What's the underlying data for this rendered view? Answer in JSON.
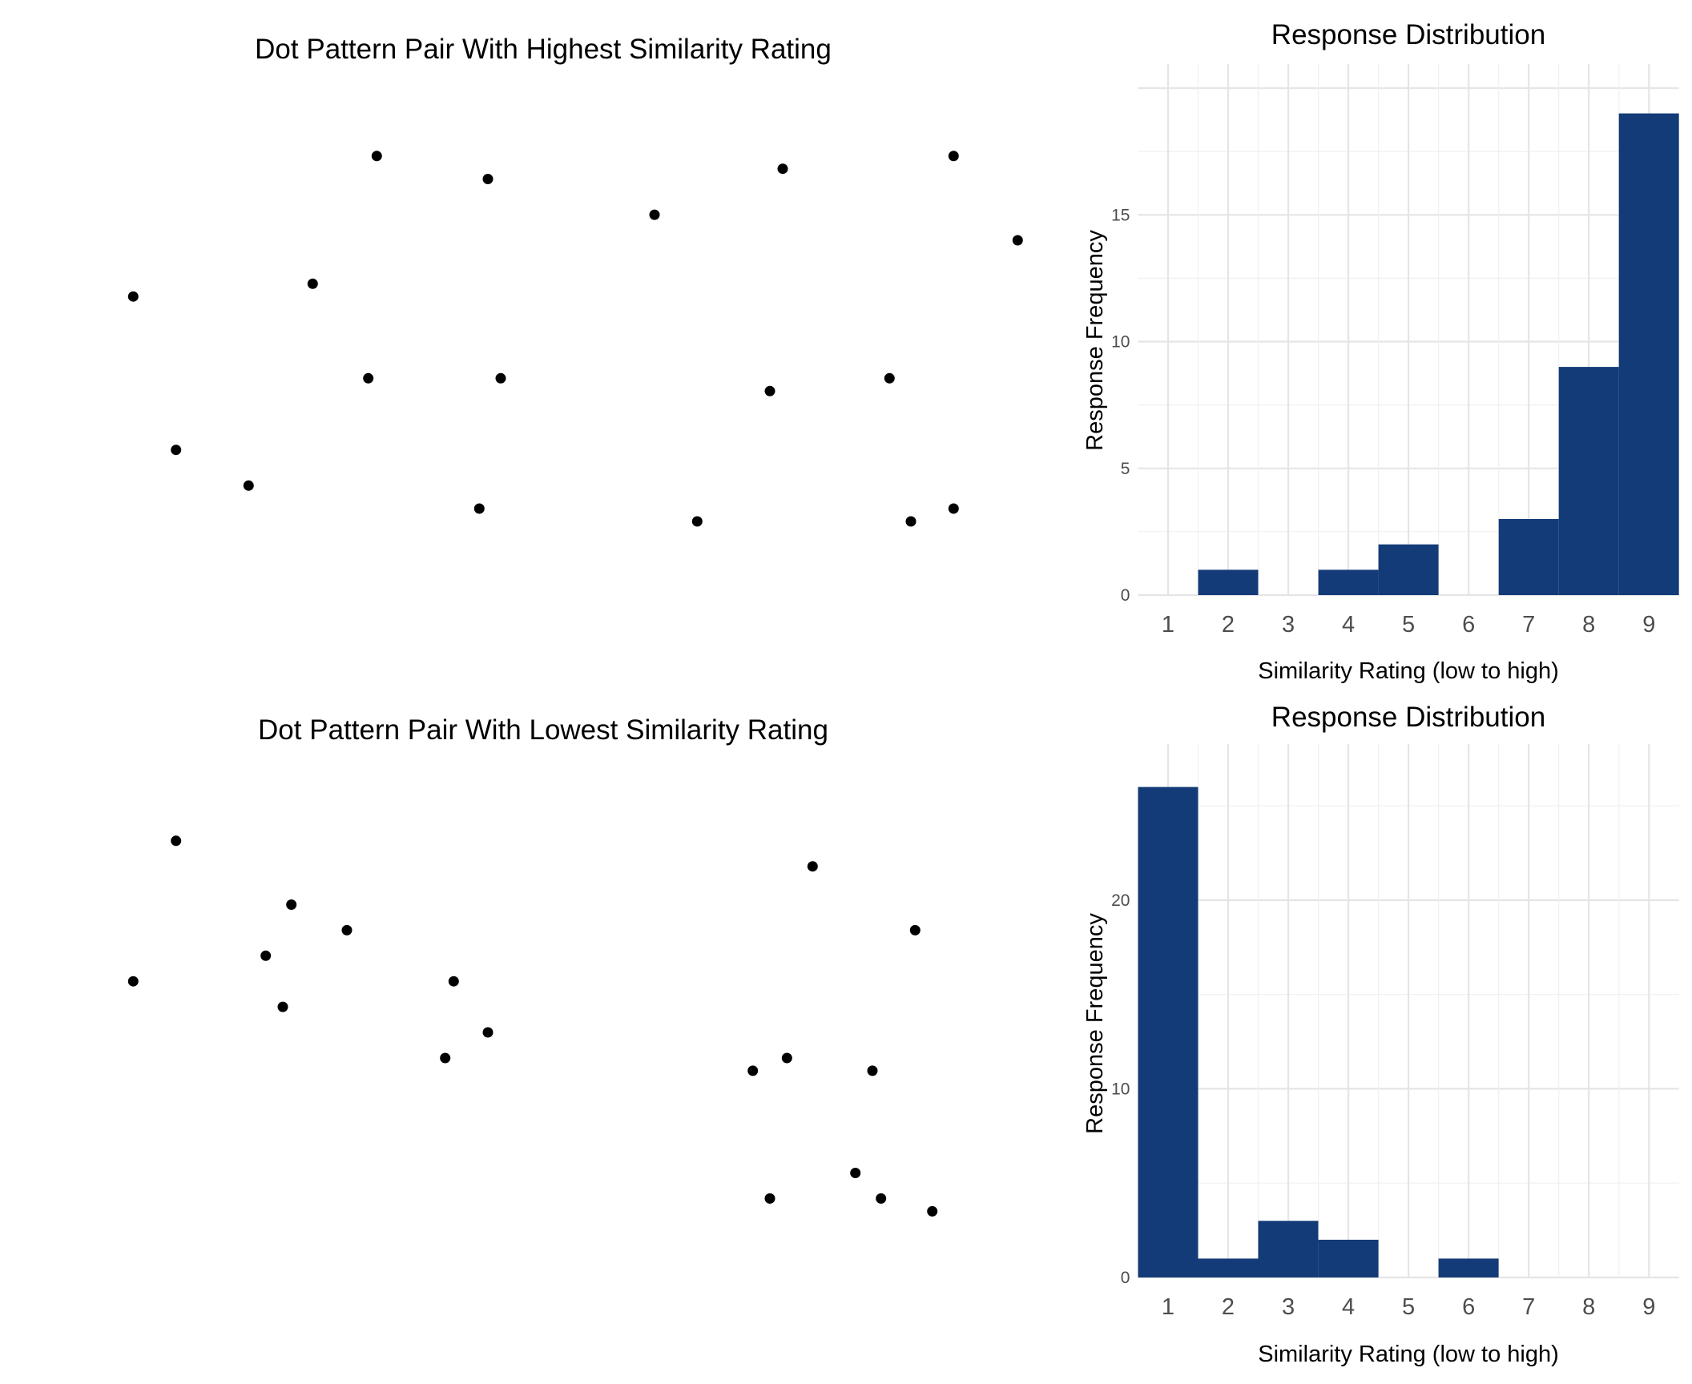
{
  "colors": {
    "bar": "#133b77",
    "dot": "#000000",
    "grid_major": "#e5e5e5",
    "grid_minor": "#f0f0f0",
    "background": "#ffffff"
  },
  "chart_data": [
    {
      "type": "scatter",
      "title": "Dot Pattern Pair With Highest Similarity Rating",
      "axes_visible": false,
      "xlim": [
        -1,
        20
      ],
      "ylim": [
        -3,
        18
      ],
      "series": [
        {
          "points": [
            [
              0,
              10
            ],
            [
              1,
              4
            ],
            [
              2.7,
              2.6
            ],
            [
              4.2,
              10.5
            ],
            [
              5.5,
              6.8
            ],
            [
              5.7,
              15.5
            ],
            [
              8.1,
              1.7
            ],
            [
              8.3,
              14.6
            ],
            [
              8.6,
              6.8
            ]
          ]
        },
        {
          "points": [
            [
              12.2,
              13.2
            ],
            [
              13.2,
              1.2
            ],
            [
              14.9,
              6.3
            ],
            [
              15.2,
              15
            ],
            [
              17.7,
              6.8
            ],
            [
              18.2,
              1.2
            ],
            [
              19.2,
              15.5
            ],
            [
              19.2,
              1.7
            ],
            [
              20.7,
              12.2
            ]
          ]
        }
      ]
    },
    {
      "type": "bar",
      "title": "Response Distribution",
      "xlabel": "Similarity Rating (low to high)",
      "ylabel": "Response Frequency",
      "categories": [
        "1",
        "2",
        "3",
        "4",
        "5",
        "6",
        "7",
        "8",
        "9"
      ],
      "values": [
        0,
        1,
        0,
        1,
        2,
        0,
        3,
        9,
        19
      ],
      "yticks": [
        0,
        5,
        10,
        15
      ],
      "ylim": [
        0,
        20
      ],
      "grid": true
    },
    {
      "type": "scatter",
      "title": "Dot Pattern Pair With Lowest Similarity Rating",
      "axes_visible": false,
      "xlim": [
        -1,
        20
      ],
      "ylim": [
        -3,
        18
      ],
      "series": [
        {
          "points": [
            [
              0,
              10
            ],
            [
              1,
              15.5
            ],
            [
              3.1,
              11
            ],
            [
              3.5,
              9
            ],
            [
              3.7,
              13
            ],
            [
              5,
              12
            ],
            [
              7.3,
              7
            ],
            [
              7.5,
              10
            ],
            [
              8.3,
              8
            ]
          ]
        },
        {
          "points": [
            [
              14.5,
              6.5
            ],
            [
              14.9,
              1.5
            ],
            [
              15.3,
              7
            ],
            [
              15.9,
              14.5
            ],
            [
              16.9,
              2.5
            ],
            [
              17.3,
              6.5
            ],
            [
              17.5,
              1.5
            ],
            [
              18.3,
              12
            ],
            [
              18.7,
              1
            ]
          ]
        }
      ]
    },
    {
      "type": "bar",
      "title": "Response Distribution",
      "xlabel": "Similarity Rating (low to high)",
      "ylabel": "Response Frequency",
      "categories": [
        "1",
        "2",
        "3",
        "4",
        "5",
        "6",
        "7",
        "8",
        "9"
      ],
      "values": [
        26,
        1,
        3,
        2,
        0,
        1,
        0,
        0,
        0
      ],
      "yticks": [
        0,
        10,
        20
      ],
      "ylim": [
        0,
        27
      ],
      "grid": true
    }
  ]
}
